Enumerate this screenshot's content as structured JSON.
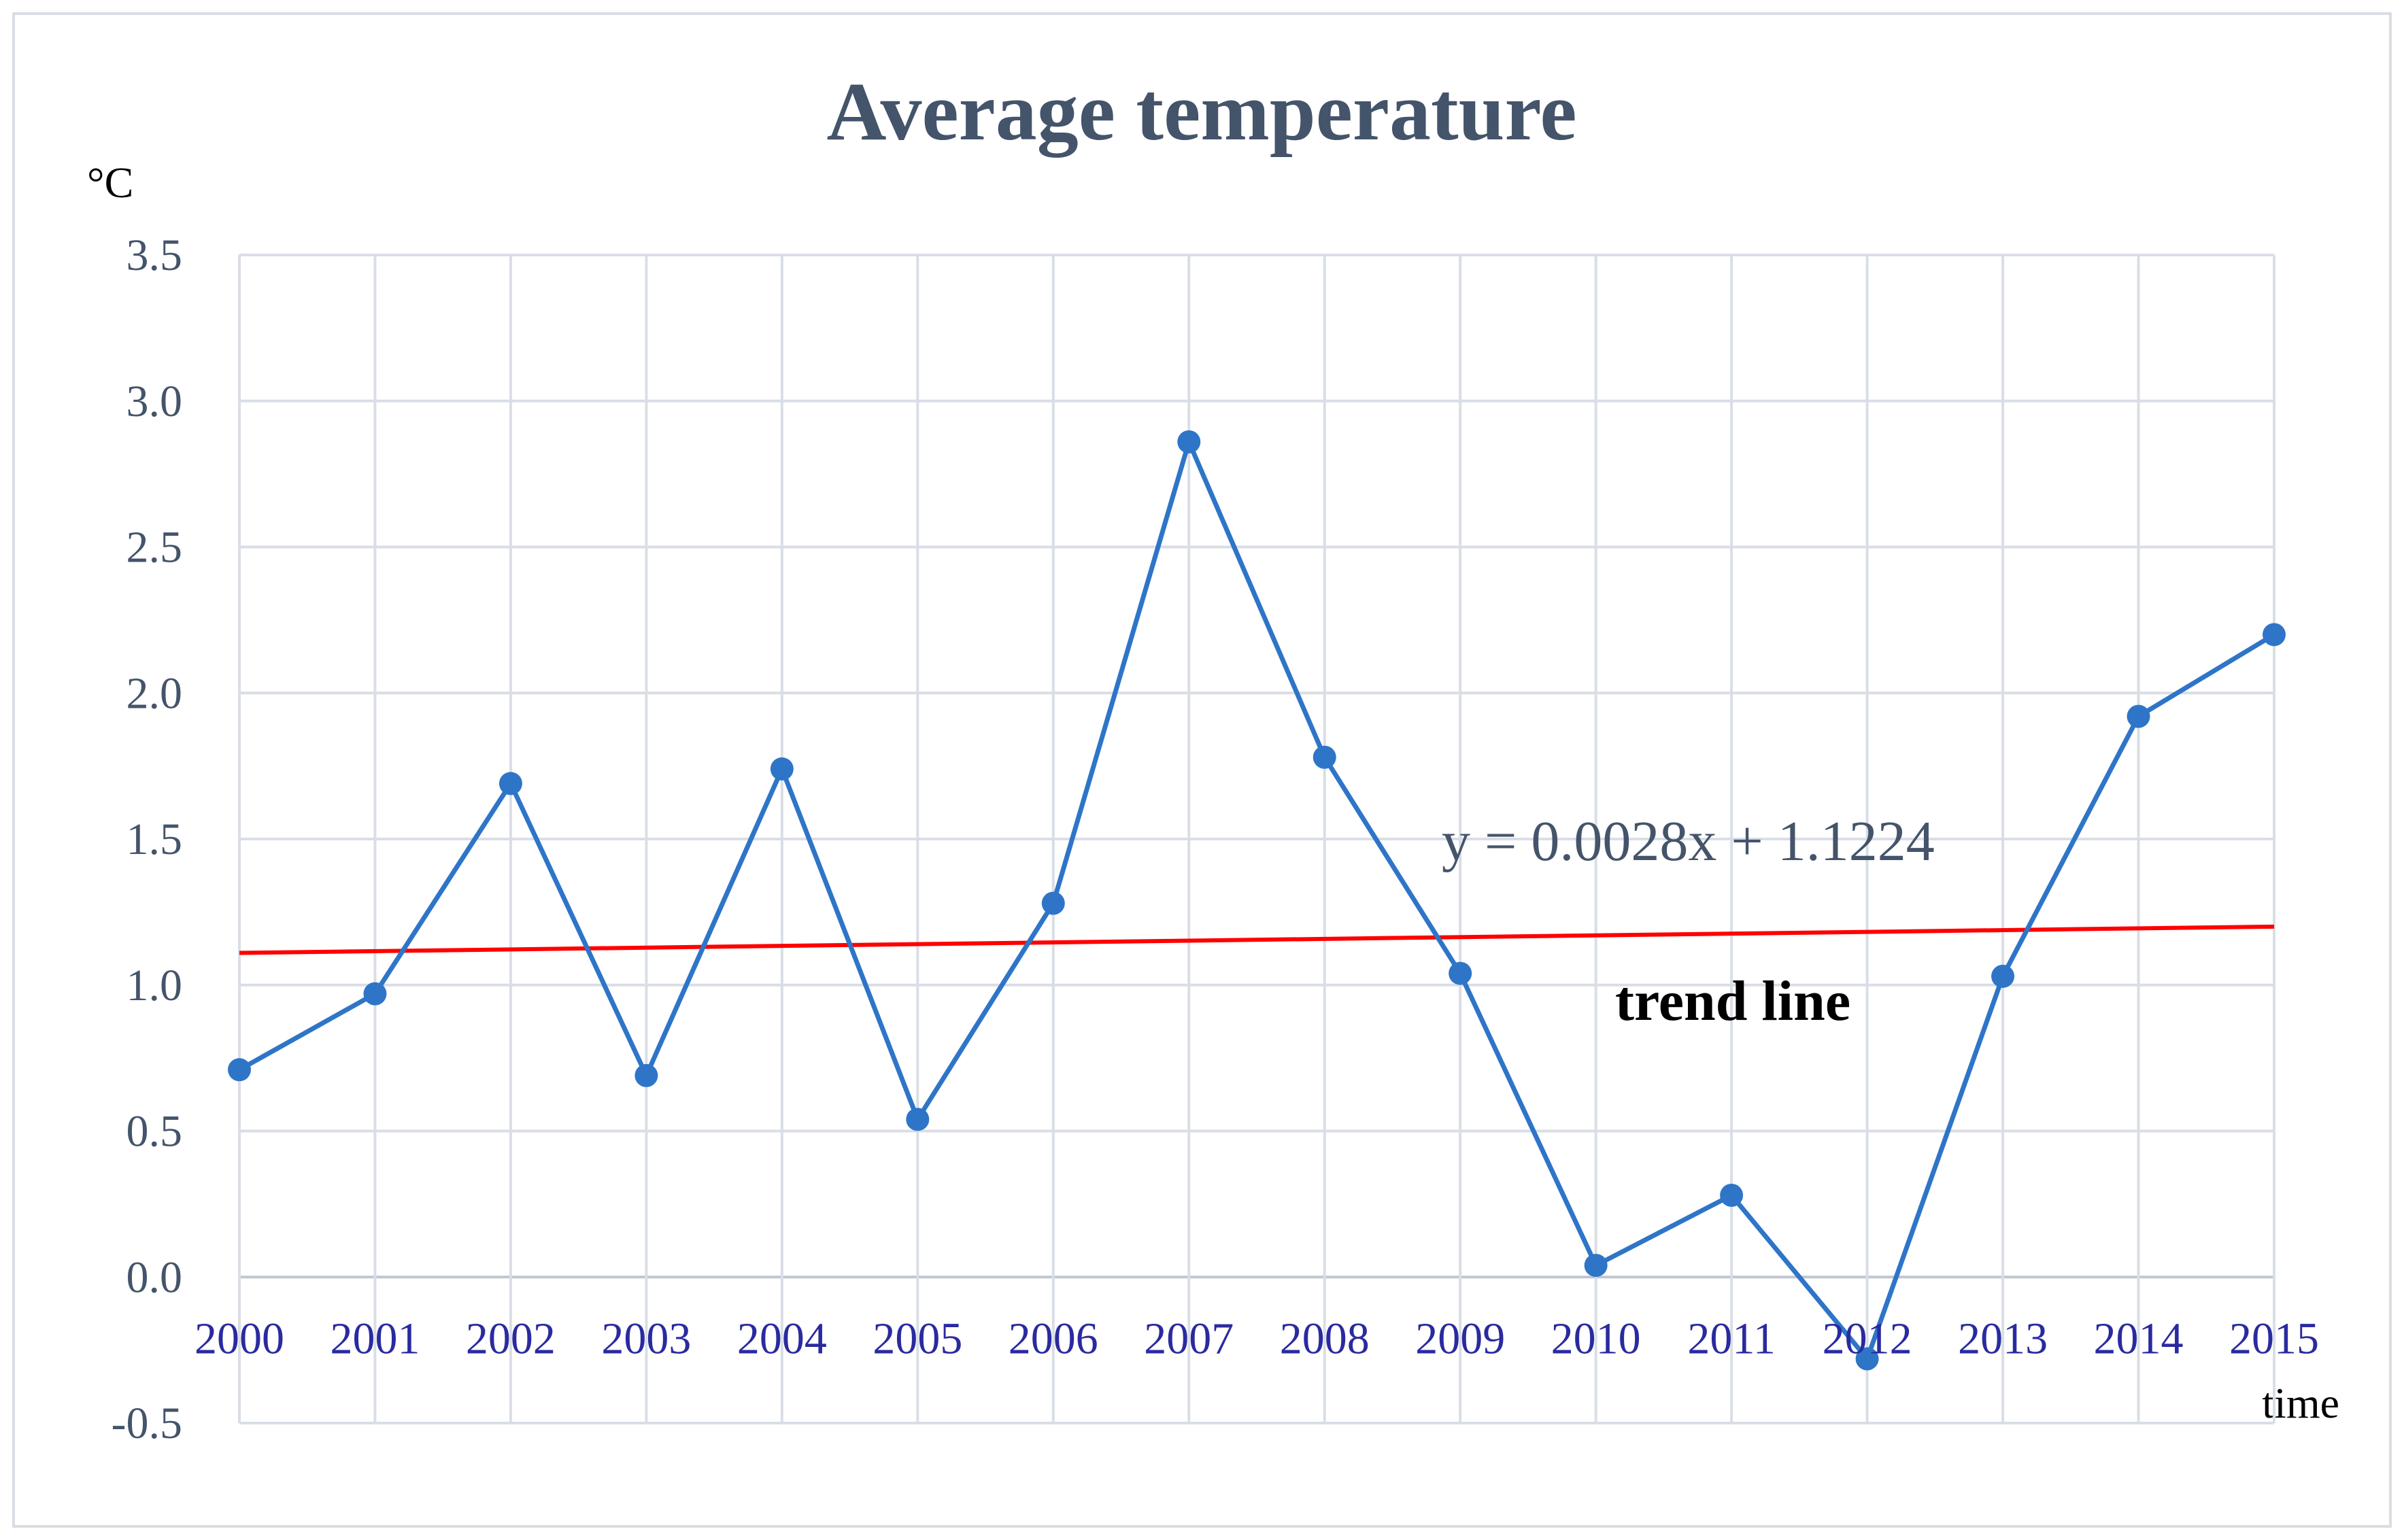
{
  "chart_data": {
    "type": "line",
    "title": "Average temperature",
    "ylabel": "°C",
    "xlabel": "time",
    "ylim": [
      -0.5,
      3.5
    ],
    "yticks": [
      "3.5",
      "3.0",
      "2.5",
      "2.0",
      "1.5",
      "1.0",
      "0.5",
      "0.0",
      "-0.5"
    ],
    "categories": [
      "2000",
      "2001",
      "2002",
      "2003",
      "2004",
      "2005",
      "2006",
      "2007",
      "2008",
      "2009",
      "2010",
      "2011",
      "2012",
      "2013",
      "2014",
      "2015"
    ],
    "series": [
      {
        "name": "Average temperature",
        "color": "#2e75c8",
        "values": [
          0.71,
          0.97,
          1.69,
          0.69,
          1.74,
          0.54,
          1.28,
          2.86,
          1.78,
          1.04,
          0.04,
          0.28,
          -0.28,
          1.03,
          1.92,
          2.2
        ]
      }
    ],
    "trendline": {
      "color": "#ff0000",
      "start": 1.11,
      "end": 1.2,
      "equation": "y = 0.0028x + 1.1224",
      "label": "trend line"
    },
    "grid": true
  }
}
